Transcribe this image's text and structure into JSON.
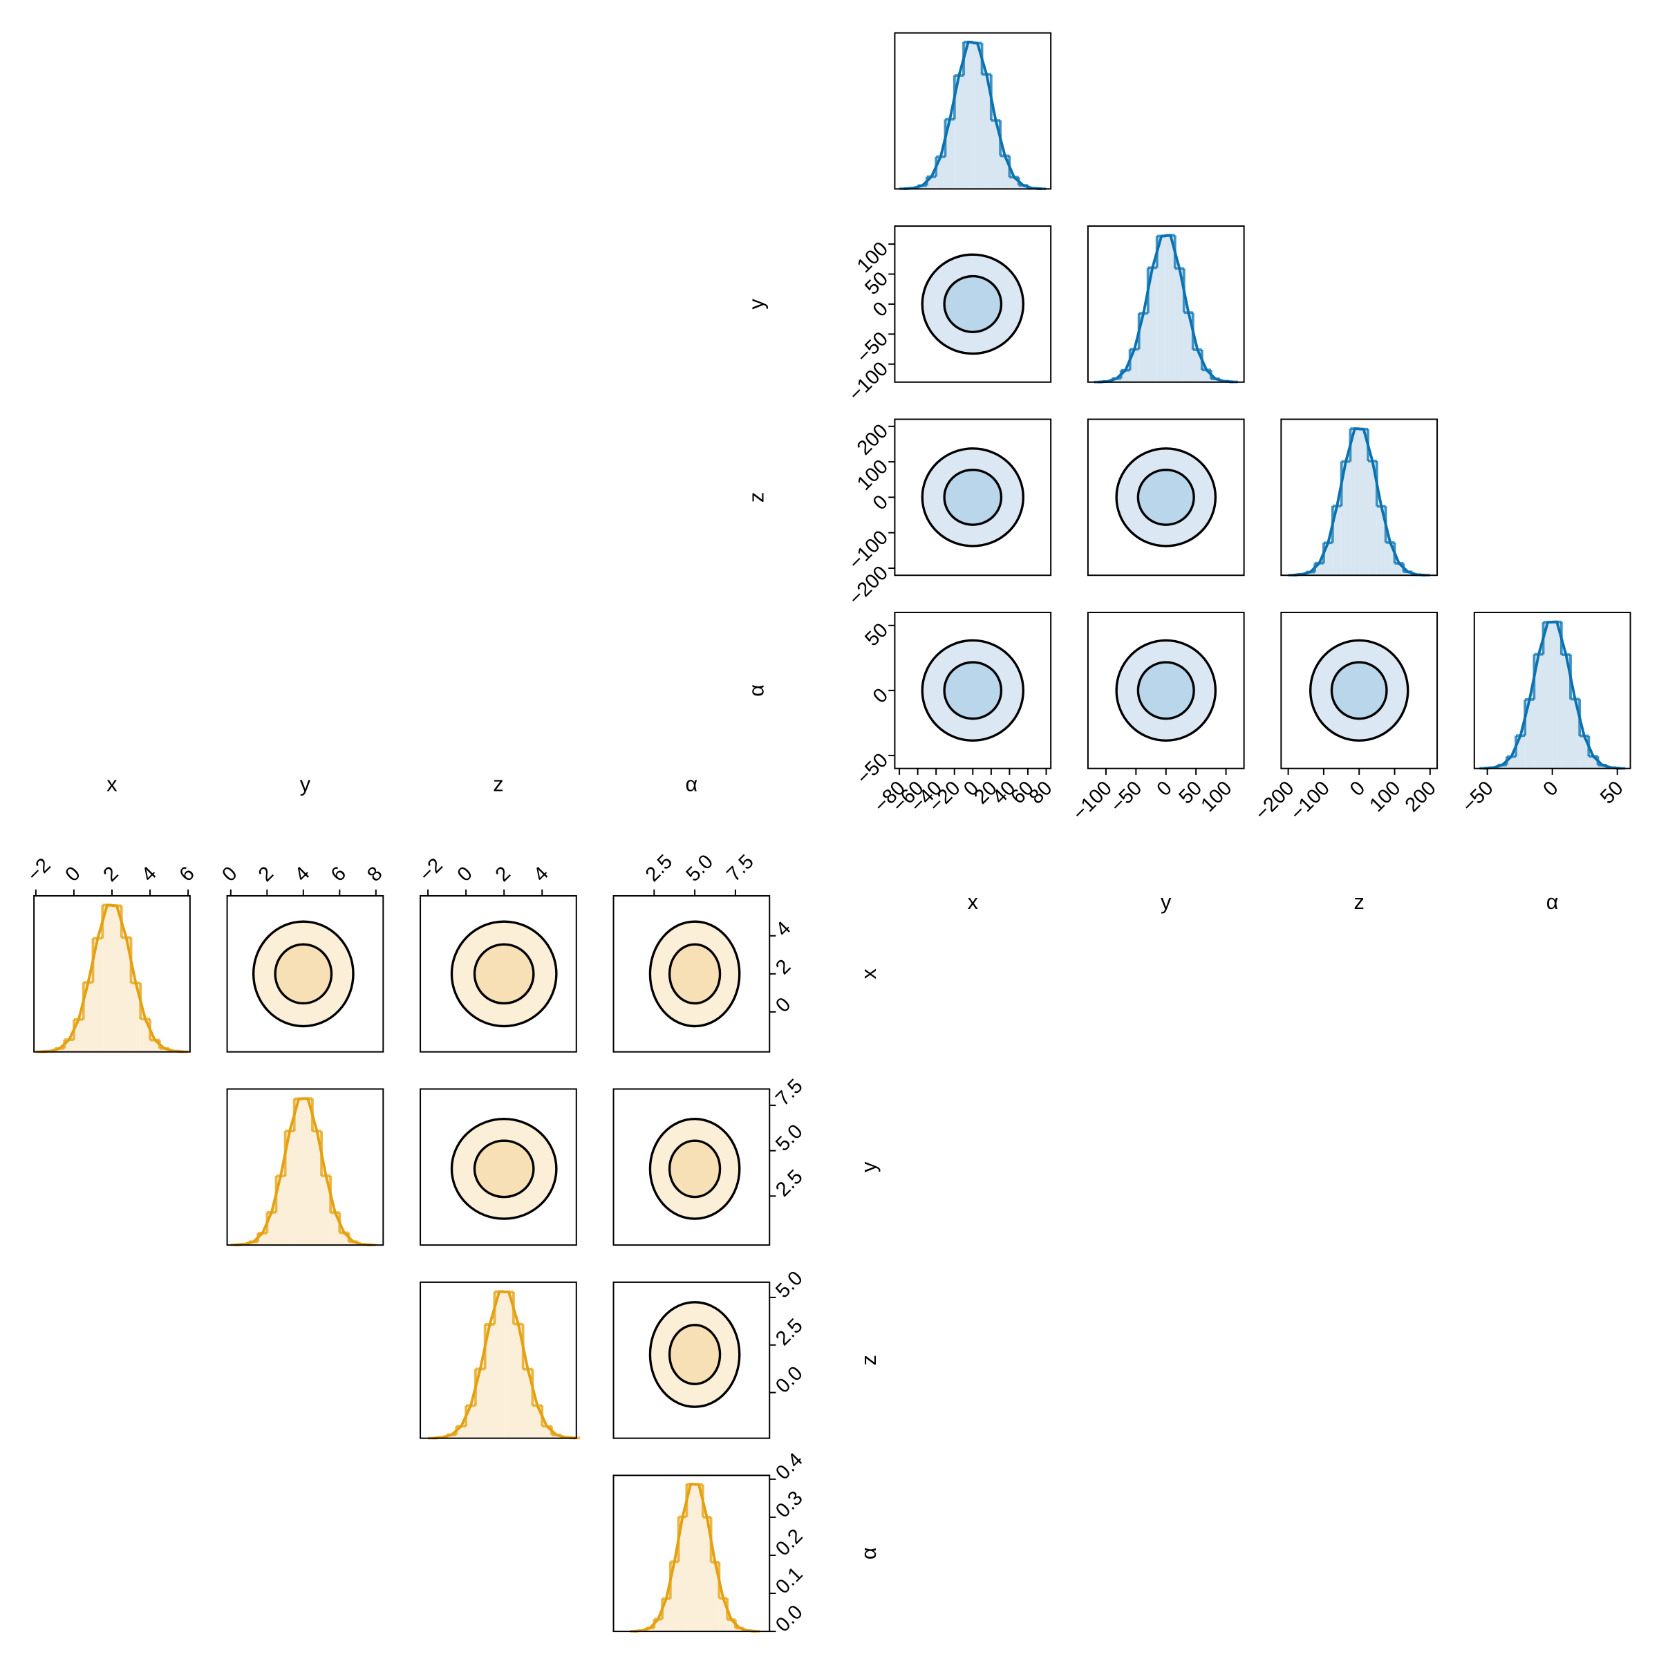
{
  "chart_data": [
    {
      "type": "corner",
      "triangle": "lower",
      "labels": [
        "x",
        "y",
        "z",
        "α"
      ],
      "color": "#0a72b0",
      "fill": "#dbe8f3",
      "inner_fill": "#b9d6ea",
      "hist_fill": "#d7e6f1",
      "contour_levels": [
        1.55,
        2.75
      ],
      "params": [
        {
          "lim": [
            -85,
            85
          ],
          "mean": 0,
          "sd": 20,
          "xticks": [
            {
              "value": -80,
              "label": "−80"
            },
            {
              "value": -60,
              "label": "−60"
            },
            {
              "value": -40,
              "label": "−40"
            },
            {
              "value": -20,
              "label": "−20"
            },
            0,
            20,
            40,
            60,
            80
          ],
          "bins": [
            -80,
            -70,
            -60,
            -50,
            -40,
            -30,
            -20,
            -10,
            0,
            10,
            20,
            30,
            40,
            50,
            60,
            70,
            80
          ],
          "counts": [
            3,
            11,
            44,
            162,
            425,
            920,
            1498,
            1940,
            1925,
            1512,
            905,
            437,
            155,
            47,
            9,
            2
          ],
          "hist_ylim": [
            0,
            2060
          ]
        },
        {
          "lim": [
            -130,
            130
          ],
          "mean": 0,
          "sd": 30,
          "xticks": [
            {
              "value": -100,
              "label": "−100"
            },
            {
              "value": -50,
              "label": "−50"
            },
            0,
            50,
            100
          ],
          "yticks": [
            {
              "value": -100,
              "label": "−100"
            },
            {
              "value": -50,
              "label": "−50"
            },
            0,
            50,
            100
          ],
          "bins": [
            -120,
            -105,
            -90,
            -75,
            -60,
            -45,
            -30,
            -15,
            0,
            15,
            30,
            45,
            60,
            75,
            90,
            105,
            120
          ],
          "counts": [
            1,
            9,
            47,
            156,
            434,
            908,
            1510,
            1928,
            1938,
            1500,
            918,
            428,
            161,
            43,
            11,
            3
          ],
          "hist_ylim": [
            0,
            2060
          ]
        },
        {
          "lim": [
            -220,
            220
          ],
          "mean": 0,
          "sd": 50,
          "xticks": [
            {
              "value": -200,
              "label": "−200"
            },
            {
              "value": -100,
              "label": "−100"
            },
            0,
            100,
            200
          ],
          "yticks": [
            {
              "value": -200,
              "label": "−200"
            },
            {
              "value": -100,
              "label": "−100"
            },
            0,
            100,
            200
          ],
          "bins": [
            -200,
            -175,
            -150,
            -125,
            -100,
            -75,
            -50,
            -25,
            0,
            25,
            50,
            75,
            100,
            125,
            150,
            175,
            200
          ],
          "counts": [
            2,
            12,
            43,
            160,
            429,
            915,
            1502,
            1936,
            1930,
            1508,
            910,
            433,
            158,
            46,
            8,
            2
          ],
          "hist_ylim": [
            0,
            2060
          ]
        },
        {
          "lim": [
            -60,
            60
          ],
          "mean": 0,
          "sd": 14,
          "xticks": [
            {
              "value": -50,
              "label": "−50"
            },
            0,
            50
          ],
          "yticks": [
            {
              "value": -50,
              "label": "−50"
            },
            0,
            50
          ],
          "bins": [
            -56,
            -49,
            -42,
            -35,
            -28,
            -21,
            -14,
            -7,
            0,
            7,
            14,
            21,
            28,
            35,
            42,
            49,
            56
          ],
          "counts": [
            2,
            10,
            46,
            157,
            433,
            911,
            1507,
            1931,
            1935,
            1503,
            916,
            430,
            160,
            44,
            10,
            1
          ],
          "hist_ylim": [
            0,
            2060
          ]
        }
      ]
    },
    {
      "type": "corner",
      "triangle": "upper",
      "labels": [
        "x",
        "y",
        "z",
        "α"
      ],
      "color": "#e4a00e",
      "fill": "#fcefd8",
      "inner_fill": "#f8e0b6",
      "hist_fill": "#fbefd9",
      "contour_levels": [
        1.55,
        2.75
      ],
      "params": [
        {
          "lim": [
            -2.1,
            6.1
          ],
          "mean": 2,
          "sd": 1,
          "xticks": [
            {
              "value": -2,
              "label": "−2"
            },
            0,
            2,
            4,
            6
          ],
          "yticks": [
            0,
            2,
            4
          ],
          "bins": [
            -2,
            -1.5,
            -1,
            -0.5,
            0,
            0.5,
            1,
            1.5,
            2,
            2.5,
            3,
            3.5,
            4,
            4.5,
            5,
            5.5,
            6
          ],
          "counts": [
            2,
            9,
            45,
            161,
            428,
            917,
            1500,
            1938,
            1929,
            1509,
            909,
            434,
            157,
            46,
            11,
            2
          ],
          "hist_ylim": [
            0,
            2060
          ]
        },
        {
          "lim": [
            -0.2,
            8.4
          ],
          "mean": 4,
          "sd": 1,
          "xticks": [
            0,
            2,
            4,
            6,
            8
          ],
          "yticks": [
            2.5,
            {
              "value": 5,
              "label": "5.0"
            },
            7.5
          ],
          "bins": [
            0,
            0.5,
            1,
            1.5,
            2,
            2.5,
            3,
            3.5,
            4,
            4.5,
            5,
            5.5,
            6,
            6.5,
            7,
            7.5,
            8
          ],
          "counts": [
            3,
            10,
            44,
            158,
            432,
            912,
            1506,
            1932,
            1934,
            1504,
            914,
            429,
            162,
            45,
            9,
            2
          ],
          "hist_ylim": [
            0,
            2060
          ]
        },
        {
          "lim": [
            -2.4,
            5.8
          ],
          "mean": 2,
          "sd": 1,
          "xticks": [
            {
              "value": -2,
              "label": "−2"
            },
            0,
            2,
            4
          ],
          "yticks": [
            {
              "value": 0,
              "label": "0.0"
            },
            2.5,
            {
              "value": 5,
              "label": "5.0"
            }
          ],
          "bins": [
            -2,
            -1.5,
            -1,
            -0.5,
            0,
            0.5,
            1,
            1.5,
            2,
            2.5,
            3,
            3.5,
            4,
            4.5,
            5,
            5.5,
            6
          ],
          "counts": [
            1,
            11,
            46,
            159,
            430,
            914,
            1503,
            1935,
            1931,
            1507,
            912,
            431,
            158,
            44,
            10,
            3
          ],
          "hist_ylim": [
            0,
            2060
          ]
        },
        {
          "lim": [
            0,
            9.6
          ],
          "mean": 5,
          "sd": 1,
          "xticks": [
            2.5,
            {
              "value": 5,
              "label": "5.0"
            },
            7.5
          ],
          "bins": [
            1,
            1.5,
            2,
            2.5,
            3,
            3.5,
            4,
            4.5,
            5,
            5.5,
            6,
            6.5,
            7,
            7.5,
            8,
            8.5,
            9
          ],
          "counts": [
            0.0004,
            0.002,
            0.009,
            0.032,
            0.086,
            0.183,
            0.301,
            0.387,
            0.386,
            0.3,
            0.182,
            0.087,
            0.031,
            0.009,
            0.002,
            0.0004
          ],
          "hist_ylim": [
            0,
            0.41
          ],
          "hist_yticks": [
            {
              "value": 0,
              "label": "0.0"
            },
            0.1,
            0.2,
            0.3,
            0.4
          ]
        }
      ]
    }
  ]
}
